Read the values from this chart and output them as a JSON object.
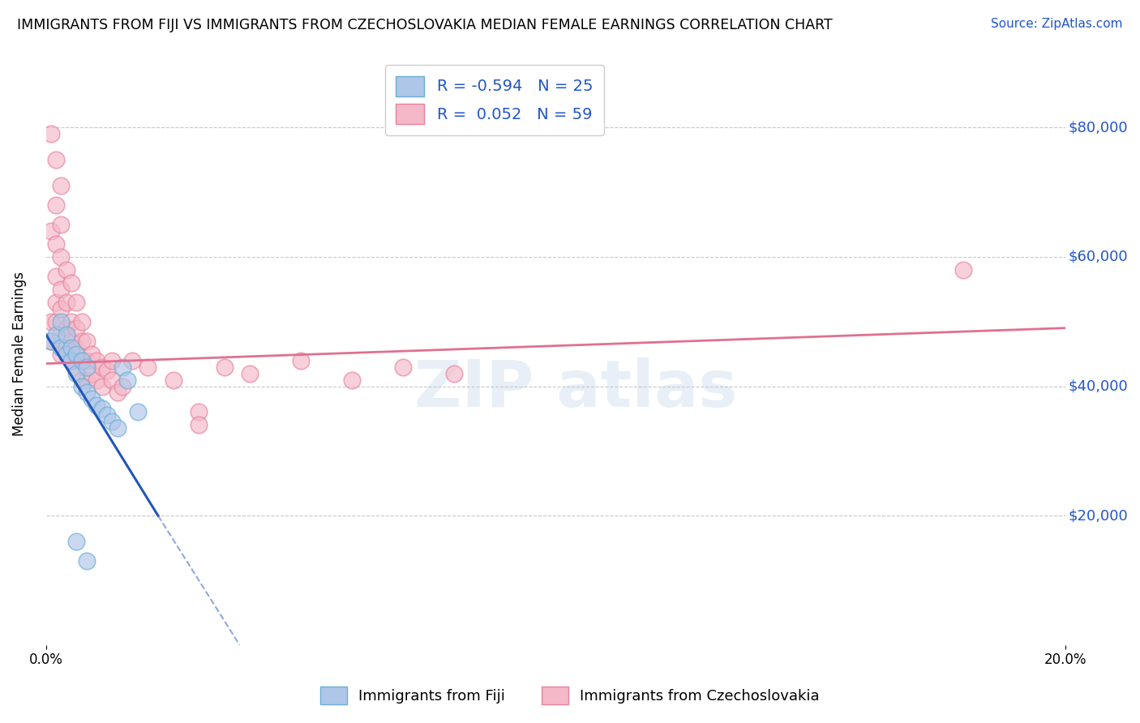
{
  "title": "IMMIGRANTS FROM FIJI VS IMMIGRANTS FROM CZECHOSLOVAKIA MEDIAN FEMALE EARNINGS CORRELATION CHART",
  "source": "Source: ZipAtlas.com",
  "ylabel": "Median Female Earnings",
  "xlim": [
    0.0,
    0.2
  ],
  "ylim": [
    0,
    90000
  ],
  "yticks": [
    0,
    20000,
    40000,
    60000,
    80000
  ],
  "ytick_labels": [
    "",
    "$20,000",
    "$40,000",
    "$60,000",
    "$80,000"
  ],
  "background_color": "#ffffff",
  "grid_color": "#c8c8c8",
  "fiji_color": "#aec6e8",
  "fiji_edge_color": "#6baed6",
  "czech_color": "#f4b8c8",
  "czech_edge_color": "#e8829a",
  "fiji_line_color": "#2255bb",
  "czech_line_color": "#e07090",
  "fiji_R": -0.594,
  "fiji_N": 25,
  "czech_R": 0.052,
  "czech_N": 59,
  "fiji_line": [
    [
      0.0,
      48000
    ],
    [
      0.022,
      20000
    ]
  ],
  "fiji_line_dashed": [
    [
      0.022,
      20000
    ],
    [
      0.038,
      0
    ]
  ],
  "czech_line": [
    [
      0.0,
      43500
    ],
    [
      0.2,
      49000
    ]
  ],
  "fiji_points": [
    [
      0.001,
      47000
    ],
    [
      0.002,
      48000
    ],
    [
      0.003,
      50000
    ],
    [
      0.003,
      46000
    ],
    [
      0.004,
      48000
    ],
    [
      0.004,
      45000
    ],
    [
      0.005,
      46000
    ],
    [
      0.005,
      44000
    ],
    [
      0.006,
      45000
    ],
    [
      0.006,
      42000
    ],
    [
      0.007,
      44000
    ],
    [
      0.007,
      40000
    ],
    [
      0.008,
      43000
    ],
    [
      0.008,
      39000
    ],
    [
      0.009,
      38000
    ],
    [
      0.01,
      37000
    ],
    [
      0.011,
      36500
    ],
    [
      0.012,
      35500
    ],
    [
      0.013,
      34500
    ],
    [
      0.014,
      33500
    ],
    [
      0.015,
      43000
    ],
    [
      0.016,
      41000
    ],
    [
      0.018,
      36000
    ],
    [
      0.006,
      16000
    ],
    [
      0.008,
      13000
    ]
  ],
  "czech_points": [
    [
      0.001,
      50000
    ],
    [
      0.001,
      64000
    ],
    [
      0.001,
      47000
    ],
    [
      0.002,
      75000
    ],
    [
      0.002,
      68000
    ],
    [
      0.002,
      62000
    ],
    [
      0.002,
      57000
    ],
    [
      0.002,
      53000
    ],
    [
      0.002,
      50000
    ],
    [
      0.003,
      71000
    ],
    [
      0.003,
      65000
    ],
    [
      0.003,
      60000
    ],
    [
      0.003,
      55000
    ],
    [
      0.003,
      52000
    ],
    [
      0.003,
      48000
    ],
    [
      0.003,
      45000
    ],
    [
      0.004,
      58000
    ],
    [
      0.004,
      53000
    ],
    [
      0.004,
      49000
    ],
    [
      0.004,
      46000
    ],
    [
      0.005,
      56000
    ],
    [
      0.005,
      50000
    ],
    [
      0.005,
      47000
    ],
    [
      0.005,
      44000
    ],
    [
      0.006,
      53000
    ],
    [
      0.006,
      49000
    ],
    [
      0.006,
      46000
    ],
    [
      0.006,
      43000
    ],
    [
      0.007,
      50000
    ],
    [
      0.007,
      47000
    ],
    [
      0.007,
      44000
    ],
    [
      0.007,
      41000
    ],
    [
      0.008,
      47000
    ],
    [
      0.008,
      44000
    ],
    [
      0.008,
      41000
    ],
    [
      0.009,
      45000
    ],
    [
      0.009,
      42000
    ],
    [
      0.01,
      44000
    ],
    [
      0.01,
      41000
    ],
    [
      0.011,
      43000
    ],
    [
      0.011,
      40000
    ],
    [
      0.012,
      42500
    ],
    [
      0.013,
      44000
    ],
    [
      0.013,
      41000
    ],
    [
      0.014,
      39000
    ],
    [
      0.015,
      40000
    ],
    [
      0.017,
      44000
    ],
    [
      0.02,
      43000
    ],
    [
      0.025,
      41000
    ],
    [
      0.03,
      36000
    ],
    [
      0.03,
      34000
    ],
    [
      0.035,
      43000
    ],
    [
      0.04,
      42000
    ],
    [
      0.05,
      44000
    ],
    [
      0.06,
      41000
    ],
    [
      0.07,
      43000
    ],
    [
      0.08,
      42000
    ],
    [
      0.18,
      58000
    ],
    [
      0.001,
      79000
    ]
  ]
}
